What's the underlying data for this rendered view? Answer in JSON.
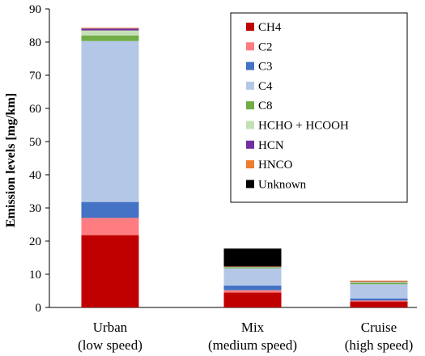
{
  "chart_data": {
    "type": "bar",
    "stacked": true,
    "ylabel": "Emission levels [mg/km]",
    "ylim": [
      0,
      90
    ],
    "yticks": [
      0,
      10,
      20,
      30,
      40,
      50,
      60,
      70,
      80,
      90
    ],
    "grid": false,
    "legend_position": "top-right",
    "categories": [
      [
        "Urban",
        "(low speed)"
      ],
      [
        "Mix",
        "(medium speed)"
      ],
      [
        "Cruise",
        "(high speed)"
      ]
    ],
    "series": [
      {
        "name": "CH4",
        "color": "#c00000",
        "values": [
          21.8,
          4.5,
          1.8
        ]
      },
      {
        "name": "C2",
        "color": "#ff7c80",
        "values": [
          5.2,
          0.7,
          0.3
        ]
      },
      {
        "name": "C3",
        "color": "#4472c4",
        "values": [
          4.8,
          1.4,
          0.6
        ]
      },
      {
        "name": "C4",
        "color": "#b4c7e7",
        "values": [
          48.5,
          5.2,
          4.3
        ]
      },
      {
        "name": "C8",
        "color": "#70ad47",
        "values": [
          1.7,
          0.3,
          0.4
        ]
      },
      {
        "name": "HCHO + HCOOH",
        "color": "#c5e0b4",
        "values": [
          1.5,
          0.1,
          0.3
        ]
      },
      {
        "name": "HCN",
        "color": "#7030a0",
        "values": [
          0.6,
          0.1,
          0.1
        ]
      },
      {
        "name": "HNCO",
        "color": "#ed7d31",
        "values": [
          0.2,
          0.05,
          0.3
        ]
      },
      {
        "name": "Unknown",
        "color": "#000000",
        "values": [
          0.0,
          5.4,
          0.0
        ]
      }
    ]
  }
}
